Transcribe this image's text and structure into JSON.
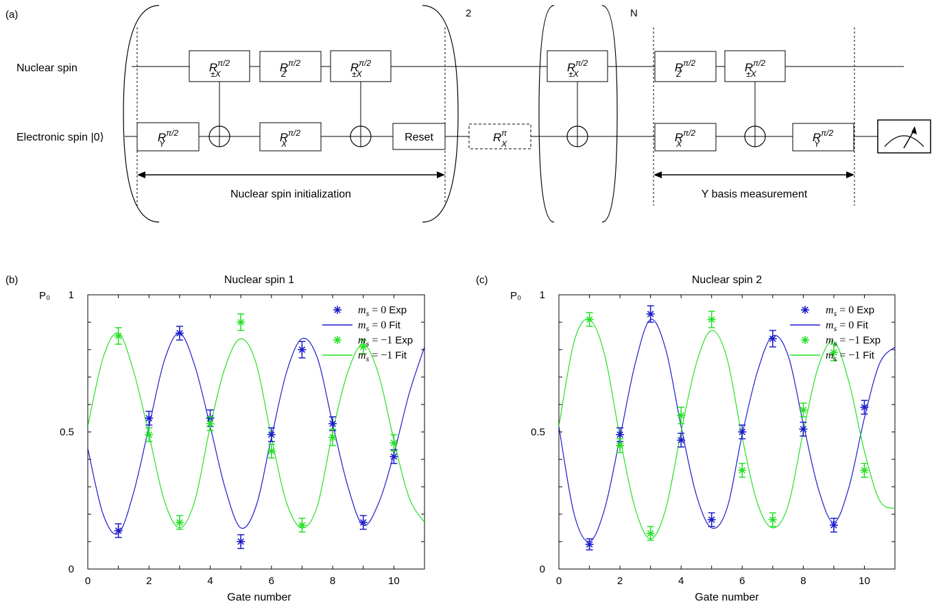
{
  "circuit": {
    "panel_label": "(a)",
    "nuclear_label": "Nuclear spin",
    "electronic_label": "Electronic spin |0⟩",
    "reset_label": "Reset",
    "repeat_2": "2",
    "repeat_n": "N",
    "init_label": "Nuclear spin initialization",
    "measure_label": "Y basis measurement",
    "gates": {
      "ry_half": {
        "base": "R",
        "sub": "Y",
        "sup": "π/2"
      },
      "rx_half": {
        "base": "R",
        "sub": "X",
        "sup": "π/2"
      },
      "rz_half": {
        "base": "R",
        "sub": "Z",
        "sup": "π/2"
      },
      "rpmx_half": {
        "base": "R",
        "sub": "±X",
        "sup": "π/2"
      },
      "rx_pi": {
        "base": "R",
        "sub": "X",
        "sup": "π"
      }
    }
  },
  "chart_data": [
    {
      "panel_label": "(b)",
      "type": "scatter",
      "title": "Nuclear spin 1",
      "xlabel": "Gate number",
      "ylabel": "P₀",
      "xlim": [
        0,
        11
      ],
      "ylim": [
        0,
        1
      ],
      "xticks": [
        0,
        2,
        4,
        6,
        8,
        10
      ],
      "yticks": [
        {
          "v": 0,
          "label": "0"
        },
        {
          "v": 0.5,
          "label": "0.5"
        },
        {
          "v": 1,
          "label": "1"
        }
      ],
      "legend": {
        "position": "top-right",
        "entries": [
          "m_s = 0 Exp",
          "m_s = 0 Fit",
          "m_s = −1 Exp",
          "m_s = −1 Fit"
        ]
      },
      "colors": {
        "ms0": "#1a1acc",
        "ms1": "#22e022"
      },
      "series": [
        {
          "name": "m_s = 0 Exp",
          "color": "#1a1acc",
          "kind": "points",
          "x": [
            1,
            2,
            3,
            4,
            5,
            6,
            7,
            8,
            9,
            10
          ],
          "y": [
            0.14,
            0.55,
            0.86,
            0.55,
            0.1,
            0.49,
            0.8,
            0.53,
            0.17,
            0.41
          ],
          "err": [
            0.025,
            0.025,
            0.025,
            0.03,
            0.025,
            0.025,
            0.03,
            0.025,
            0.025,
            0.025
          ]
        },
        {
          "name": "m_s = −1 Exp",
          "color": "#22e022",
          "kind": "points",
          "x": [
            1,
            2,
            3,
            4,
            5,
            6,
            7,
            8,
            9,
            10
          ],
          "y": [
            0.85,
            0.49,
            0.17,
            0.53,
            0.9,
            0.43,
            0.16,
            0.48,
            0.81,
            0.46
          ],
          "err": [
            0.03,
            0.025,
            0.025,
            0.025,
            0.03,
            0.025,
            0.025,
            0.03,
            0.025,
            0.03
          ]
        },
        {
          "name": "m_s = 0 Fit",
          "color": "#1a1acc",
          "kind": "line",
          "x": [
            0,
            0.5,
            1,
            1.5,
            2,
            2.5,
            3,
            3.5,
            4,
            4.5,
            5,
            5.5,
            6,
            6.5,
            7,
            7.5,
            8,
            8.5,
            9,
            9.5,
            10,
            10.5,
            11
          ],
          "y": [
            0.44,
            0.2,
            0.13,
            0.28,
            0.52,
            0.76,
            0.86,
            0.74,
            0.52,
            0.29,
            0.15,
            0.23,
            0.48,
            0.72,
            0.84,
            0.77,
            0.53,
            0.3,
            0.16,
            0.24,
            0.42,
            0.64,
            0.81
          ]
        },
        {
          "name": "m_s = −1 Fit",
          "color": "#22e022",
          "kind": "line",
          "x": [
            0,
            0.5,
            1,
            1.5,
            2,
            2.5,
            3,
            3.5,
            4,
            4.5,
            5,
            5.5,
            6,
            6.5,
            7,
            7.5,
            8,
            8.5,
            9,
            9.5,
            10,
            10.5,
            11
          ],
          "y": [
            0.52,
            0.77,
            0.86,
            0.72,
            0.49,
            0.25,
            0.15,
            0.25,
            0.52,
            0.74,
            0.84,
            0.75,
            0.48,
            0.24,
            0.15,
            0.23,
            0.5,
            0.72,
            0.82,
            0.71,
            0.47,
            0.26,
            0.17
          ]
        }
      ]
    },
    {
      "panel_label": "(c)",
      "type": "scatter",
      "title": "Nuclear spin 2",
      "xlabel": "Gate number",
      "ylabel": "P₀",
      "xlim": [
        0,
        11
      ],
      "ylim": [
        0,
        1
      ],
      "xticks": [
        0,
        2,
        4,
        6,
        8,
        10
      ],
      "yticks": [
        {
          "v": 0,
          "label": "0"
        },
        {
          "v": 0.5,
          "label": "0.5"
        },
        {
          "v": 1,
          "label": "1"
        }
      ],
      "legend": {
        "position": "top-right",
        "entries": [
          "m_s = 0 Exp",
          "m_s = 0 Fit",
          "m_s = −1 Exp",
          "m_s = −1 Fit"
        ]
      },
      "colors": {
        "ms0": "#1a1acc",
        "ms1": "#22e022"
      },
      "series": [
        {
          "name": "m_s = 0 Exp",
          "color": "#1a1acc",
          "kind": "points",
          "x": [
            1,
            2,
            3,
            4,
            5,
            6,
            7,
            8,
            9,
            10
          ],
          "y": [
            0.09,
            0.49,
            0.93,
            0.47,
            0.18,
            0.5,
            0.84,
            0.51,
            0.16,
            0.59
          ],
          "err": [
            0.02,
            0.025,
            0.03,
            0.025,
            0.025,
            0.025,
            0.03,
            0.025,
            0.025,
            0.025
          ]
        },
        {
          "name": "m_s = −1 Exp",
          "color": "#22e022",
          "kind": "points",
          "x": [
            1,
            2,
            3,
            4,
            5,
            6,
            7,
            8,
            9,
            10
          ],
          "y": [
            0.91,
            0.45,
            0.13,
            0.56,
            0.91,
            0.36,
            0.18,
            0.58,
            0.79,
            0.36
          ],
          "err": [
            0.025,
            0.025,
            0.025,
            0.03,
            0.03,
            0.025,
            0.025,
            0.025,
            0.03,
            0.025
          ]
        },
        {
          "name": "m_s = 0 Fit",
          "color": "#1a1acc",
          "kind": "line",
          "x": [
            0,
            0.5,
            1,
            1.5,
            2,
            2.5,
            3,
            3.5,
            4,
            4.5,
            5,
            5.5,
            6,
            6.5,
            7,
            7.5,
            8,
            8.5,
            9,
            9.5,
            10,
            10.5,
            11
          ],
          "y": [
            0.52,
            0.2,
            0.1,
            0.22,
            0.48,
            0.75,
            0.91,
            0.8,
            0.52,
            0.27,
            0.15,
            0.22,
            0.49,
            0.72,
            0.85,
            0.78,
            0.53,
            0.29,
            0.17,
            0.3,
            0.55,
            0.75,
            0.81
          ]
        },
        {
          "name": "m_s = −1 Fit",
          "color": "#22e022",
          "kind": "line",
          "x": [
            0,
            0.5,
            1,
            1.5,
            2,
            2.5,
            3,
            3.5,
            4,
            4.5,
            5,
            5.5,
            6,
            6.5,
            7,
            7.5,
            8,
            8.5,
            9,
            9.5,
            10,
            10.5,
            11
          ],
          "y": [
            0.52,
            0.83,
            0.91,
            0.78,
            0.48,
            0.22,
            0.11,
            0.22,
            0.5,
            0.75,
            0.87,
            0.77,
            0.48,
            0.24,
            0.15,
            0.23,
            0.5,
            0.74,
            0.83,
            0.68,
            0.43,
            0.25,
            0.22
          ]
        }
      ]
    }
  ]
}
